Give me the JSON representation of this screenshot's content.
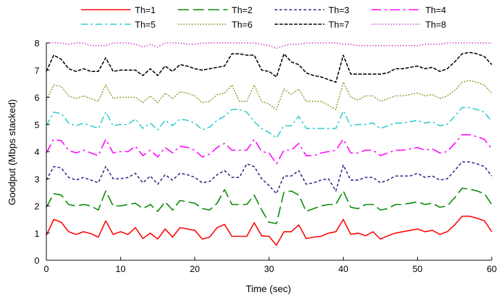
{
  "chart_data": {
    "type": "line",
    "title": "",
    "xlabel": "Time (sec)",
    "ylabel": "Goodput (Mbps stacked)",
    "xlim": [
      0,
      60
    ],
    "ylim": [
      0,
      8
    ],
    "xticks": [
      0,
      10,
      20,
      30,
      40,
      50,
      60
    ],
    "yticks": [
      0,
      1,
      2,
      3,
      4,
      5,
      6,
      7,
      8
    ],
    "xtick_labels": [
      "0",
      "10",
      "20",
      "30",
      "40",
      "50",
      "60"
    ],
    "ytick_labels": [
      "0",
      "1",
      "2",
      "3",
      "4",
      "5",
      "6",
      "7",
      "8"
    ],
    "grid": false,
    "legend_position": "top",
    "x": [
      0,
      1,
      2,
      3,
      4,
      5,
      6,
      7,
      8,
      9,
      10,
      11,
      12,
      13,
      14,
      15,
      16,
      17,
      18,
      19,
      20,
      21,
      22,
      23,
      24,
      25,
      26,
      27,
      28,
      29,
      30,
      31,
      32,
      33,
      34,
      35,
      36,
      37,
      38,
      39,
      40,
      41,
      42,
      43,
      44,
      45,
      46,
      47,
      48,
      49,
      50,
      51,
      52,
      53,
      54,
      55,
      56,
      57,
      58,
      59,
      60
    ],
    "series": [
      {
        "name": "Th=1",
        "color": "#ff0000",
        "dash": "",
        "values": [
          0.92,
          1.5,
          1.4,
          1.05,
          0.95,
          1.05,
          0.98,
          0.85,
          1.45,
          0.95,
          1.05,
          0.95,
          1.2,
          0.8,
          1.0,
          0.78,
          1.15,
          0.85,
          1.2,
          1.15,
          1.1,
          0.78,
          0.85,
          1.2,
          1.32,
          0.88,
          0.88,
          0.88,
          1.38,
          0.9,
          0.88,
          0.55,
          1.05,
          1.05,
          1.3,
          0.8,
          0.85,
          0.88,
          1.0,
          1.05,
          1.5,
          0.95,
          1.0,
          0.9,
          1.05,
          0.78,
          0.9,
          1.0,
          1.05,
          1.1,
          1.15,
          1.05,
          1.1,
          0.95,
          1.05,
          1.3,
          1.62,
          1.62,
          1.55,
          1.45,
          1.05
        ]
      },
      {
        "name": "Th=2",
        "color": "#008800",
        "dash": "16 6",
        "values": [
          1.95,
          2.45,
          2.4,
          2.05,
          2.0,
          2.05,
          2.0,
          1.85,
          2.55,
          2.0,
          2.0,
          2.05,
          2.1,
          1.9,
          2.05,
          1.8,
          2.15,
          1.85,
          2.2,
          2.15,
          2.1,
          1.9,
          1.85,
          2.1,
          2.6,
          2.05,
          2.05,
          2.05,
          2.4,
          1.85,
          1.4,
          1.35,
          2.5,
          2.55,
          2.4,
          1.8,
          1.9,
          2.0,
          2.05,
          2.05,
          2.55,
          1.95,
          1.9,
          2.05,
          2.05,
          1.85,
          1.9,
          2.05,
          2.05,
          2.1,
          2.15,
          2.05,
          2.1,
          1.95,
          2.0,
          2.3,
          2.65,
          2.62,
          2.55,
          2.45,
          2.05
        ]
      },
      {
        "name": "Th=3",
        "color": "#2a2a8a",
        "dash": "4 3",
        "values": [
          2.95,
          3.45,
          3.4,
          3.05,
          2.95,
          3.05,
          2.95,
          2.85,
          3.45,
          3.0,
          3.0,
          3.05,
          3.2,
          2.85,
          3.1,
          2.8,
          3.15,
          2.95,
          3.2,
          3.15,
          3.05,
          2.85,
          2.9,
          3.15,
          3.3,
          3.05,
          3.05,
          3.55,
          3.45,
          3.0,
          2.75,
          2.45,
          3.1,
          3.1,
          3.3,
          2.8,
          2.85,
          2.95,
          3.0,
          2.55,
          3.5,
          2.95,
          2.95,
          3.05,
          3.05,
          2.85,
          2.95,
          3.1,
          3.1,
          3.1,
          3.2,
          3.05,
          3.1,
          2.95,
          3.0,
          3.3,
          3.62,
          3.62,
          3.55,
          3.45,
          3.1
        ]
      },
      {
        "name": "Th=4",
        "color": "#ff00ff",
        "dash": "14 5 3 5",
        "values": [
          3.95,
          4.45,
          4.4,
          4.05,
          3.95,
          4.05,
          3.95,
          3.85,
          4.45,
          3.95,
          4.0,
          4.0,
          4.2,
          3.85,
          4.05,
          3.8,
          4.15,
          3.95,
          4.2,
          4.15,
          4.05,
          3.8,
          3.9,
          4.15,
          4.3,
          4.05,
          4.05,
          4.05,
          4.45,
          4.0,
          3.95,
          3.55,
          4.05,
          4.05,
          4.3,
          3.85,
          3.85,
          3.95,
          4.0,
          4.05,
          4.45,
          3.95,
          3.95,
          4.05,
          4.05,
          3.85,
          3.95,
          4.05,
          4.05,
          4.1,
          4.15,
          4.05,
          4.1,
          3.95,
          4.0,
          4.3,
          4.62,
          4.62,
          4.55,
          4.45,
          4.1
        ]
      },
      {
        "name": "Th=5",
        "color": "#33cccc",
        "dash": "10 4 3 4",
        "values": [
          4.95,
          5.45,
          5.4,
          5.05,
          4.95,
          5.05,
          4.95,
          4.85,
          5.45,
          4.95,
          5.0,
          5.0,
          5.2,
          4.85,
          5.05,
          4.8,
          5.15,
          4.95,
          5.2,
          5.15,
          5.05,
          4.8,
          4.9,
          5.15,
          5.3,
          5.55,
          5.55,
          5.45,
          5.1,
          4.85,
          4.7,
          4.5,
          4.95,
          4.95,
          5.3,
          4.85,
          4.85,
          4.85,
          4.85,
          4.85,
          5.5,
          4.95,
          5.0,
          5.0,
          5.05,
          4.85,
          4.95,
          5.05,
          5.05,
          5.1,
          5.15,
          5.05,
          5.1,
          4.95,
          5.0,
          5.3,
          5.62,
          5.62,
          5.55,
          5.45,
          5.1
        ]
      },
      {
        "name": "Th=6",
        "color": "#999933",
        "dash": "2 2",
        "values": [
          5.9,
          6.45,
          6.4,
          6.05,
          5.95,
          6.05,
          5.95,
          5.85,
          6.45,
          5.95,
          6.0,
          6.0,
          6.0,
          5.8,
          6.05,
          5.8,
          6.15,
          5.95,
          6.2,
          6.15,
          6.05,
          5.8,
          5.85,
          6.1,
          6.15,
          6.45,
          5.85,
          5.85,
          6.45,
          5.85,
          5.75,
          5.55,
          6.3,
          6.1,
          6.3,
          5.85,
          5.85,
          5.85,
          5.7,
          5.55,
          6.55,
          6.0,
          5.9,
          6.05,
          6.05,
          5.85,
          5.95,
          6.05,
          6.05,
          6.1,
          6.15,
          6.05,
          6.1,
          5.95,
          6.05,
          6.25,
          6.55,
          6.62,
          6.55,
          6.45,
          6.15
        ]
      },
      {
        "name": "Th=7",
        "color": "#000000",
        "dash": "5 2",
        "values": [
          6.95,
          7.55,
          7.4,
          7.05,
          6.95,
          7.05,
          6.95,
          6.95,
          7.45,
          6.95,
          7.0,
          7.0,
          7.0,
          6.8,
          7.05,
          6.8,
          7.15,
          6.95,
          7.2,
          7.15,
          7.05,
          7.0,
          7.05,
          7.1,
          7.15,
          7.6,
          7.6,
          7.55,
          7.55,
          7.0,
          6.95,
          6.75,
          7.6,
          7.3,
          7.2,
          6.9,
          6.8,
          6.75,
          6.65,
          6.55,
          7.55,
          6.85,
          6.85,
          6.85,
          6.85,
          6.85,
          6.9,
          7.05,
          7.05,
          7.1,
          7.15,
          7.05,
          7.1,
          6.95,
          7.05,
          7.3,
          7.6,
          7.65,
          7.6,
          7.5,
          7.2
        ]
      },
      {
        "name": "Th=8",
        "color": "#cc33cc",
        "dash": "1.5 2.5",
        "values": [
          8,
          8,
          8,
          7.95,
          8,
          8,
          7.9,
          7.9,
          7.9,
          8,
          8,
          8,
          7.95,
          7.85,
          7.95,
          7.85,
          8,
          8,
          8,
          7.95,
          7.95,
          8,
          8,
          8,
          8,
          8,
          8,
          8,
          8,
          7.95,
          7.9,
          7.8,
          7.9,
          7.95,
          7.95,
          8,
          8,
          8,
          8,
          8,
          7.95,
          7.95,
          7.9,
          7.9,
          7.9,
          7.9,
          7.9,
          7.9,
          7.9,
          7.9,
          7.9,
          7.95,
          7.95,
          7.95,
          8,
          8,
          8,
          8,
          8,
          8,
          8
        ]
      }
    ]
  }
}
